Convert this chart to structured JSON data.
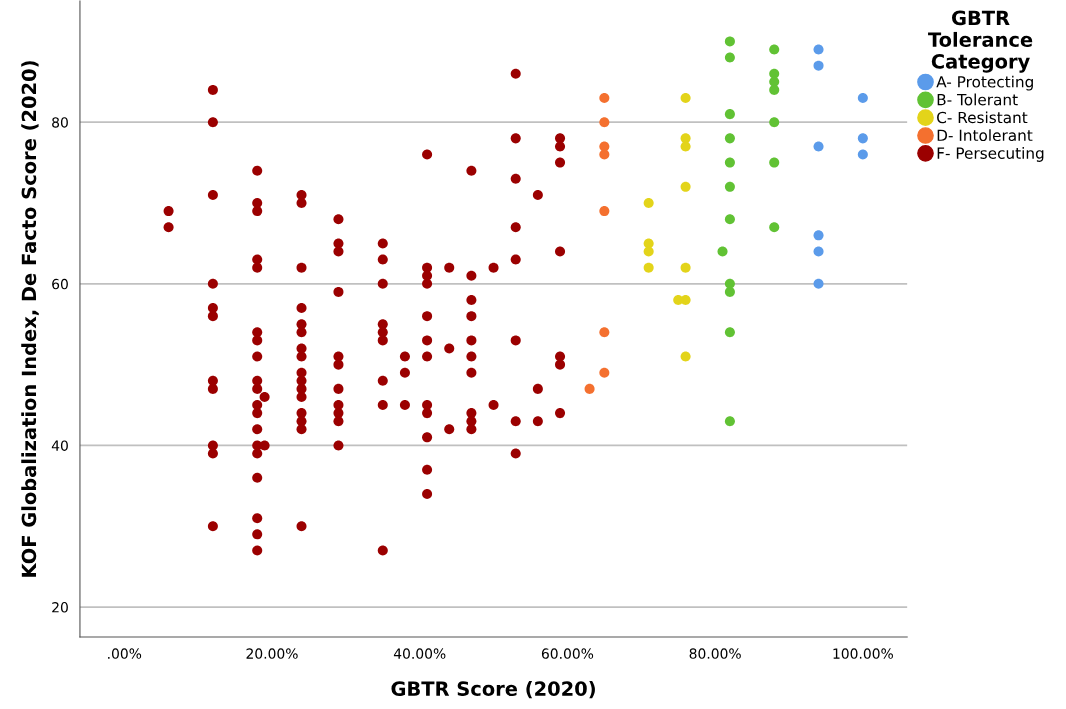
{
  "chart_data": {
    "type": "scatter",
    "xlabel": "GBTR Score (2020)",
    "ylabel": "KOF Globalization Index, De Facto Score (2020)",
    "legend_title": "GBTR\nTolerance\nCategory",
    "xlim": [
      -6,
      106
    ],
    "ylim": [
      16.3,
      95
    ],
    "xticks": [
      {
        "value": 0,
        "label": ".00%"
      },
      {
        "value": 20,
        "label": "20.00%"
      },
      {
        "value": 40,
        "label": "40.00%"
      },
      {
        "value": 60,
        "label": "60.00%"
      },
      {
        "value": 80,
        "label": "80.00%"
      },
      {
        "value": 100,
        "label": "100.00%"
      }
    ],
    "yticks": [
      20,
      40,
      60,
      80
    ],
    "grid": "y",
    "legend": "top right",
    "marker": "circle",
    "series": [
      {
        "name": "A- Protecting",
        "color": "#5b9bea",
        "x": [
          94,
          94,
          94,
          94,
          94,
          94,
          100,
          100,
          100
        ],
        "values": [
          89,
          87,
          77,
          66,
          64,
          60,
          83,
          78,
          76
        ]
      },
      {
        "name": "B- Tolerant",
        "color": "#61c234",
        "x": [
          82,
          82,
          82,
          82,
          82,
          82,
          82,
          82,
          82,
          82,
          82,
          81,
          88,
          88,
          88,
          88,
          88,
          88,
          88
        ],
        "values": [
          90,
          88,
          81,
          78,
          75,
          72,
          68,
          60,
          59,
          54,
          43,
          64,
          89,
          86,
          85,
          84,
          80,
          75,
          67
        ]
      },
      {
        "name": "C- Resistant",
        "color": "#e3d41a",
        "x": [
          71,
          71,
          71,
          71,
          76,
          76,
          76,
          76,
          76,
          76,
          76,
          75
        ],
        "values": [
          70,
          65,
          64,
          62,
          83,
          78,
          77,
          72,
          62,
          58,
          51,
          58
        ]
      },
      {
        "name": "D- Intolerant",
        "color": "#f4702f",
        "x": [
          65,
          65,
          65,
          65,
          65,
          65,
          65,
          63
        ],
        "values": [
          83,
          80,
          77,
          76,
          69,
          54,
          49,
          47
        ]
      },
      {
        "name": "F- Persecuting",
        "color": "#9b0000",
        "x": [
          6,
          6,
          12,
          12,
          12,
          12,
          12,
          12,
          12,
          12,
          12,
          12,
          12,
          18,
          18,
          18,
          18,
          18,
          18,
          18,
          18,
          18,
          18,
          18,
          18,
          18,
          18,
          18,
          18,
          18,
          18,
          18,
          19,
          19,
          24,
          24,
          24,
          24,
          24,
          24,
          24,
          24,
          24,
          24,
          24,
          24,
          24,
          24,
          24,
          24,
          29,
          29,
          29,
          29,
          29,
          29,
          29,
          29,
          29,
          29,
          29,
          35,
          35,
          35,
          35,
          35,
          35,
          35,
          35,
          35,
          38,
          38,
          38,
          41,
          41,
          41,
          41,
          41,
          41,
          41,
          41,
          41,
          41,
          41,
          41,
          44,
          44,
          44,
          47,
          47,
          47,
          47,
          47,
          47,
          47,
          47,
          47,
          47,
          50,
          50,
          53,
          53,
          53,
          53,
          53,
          53,
          53,
          53,
          56,
          56,
          56,
          59,
          59,
          59,
          59,
          59,
          59,
          59
        ],
        "values": [
          69,
          67,
          84,
          80,
          71,
          60,
          57,
          56,
          48,
          47,
          40,
          39,
          30,
          74,
          70,
          69,
          63,
          62,
          54,
          53,
          51,
          48,
          47,
          45,
          44,
          42,
          40,
          39,
          36,
          31,
          29,
          27,
          46,
          40,
          71,
          70,
          62,
          57,
          55,
          54,
          52,
          51,
          49,
          48,
          47,
          46,
          44,
          43,
          42,
          30,
          68,
          65,
          64,
          59,
          51,
          50,
          47,
          45,
          44,
          43,
          40,
          65,
          63,
          60,
          55,
          54,
          53,
          48,
          45,
          27,
          51,
          49,
          45,
          76,
          62,
          61,
          60,
          56,
          53,
          51,
          45,
          44,
          41,
          37,
          34,
          62,
          52,
          42,
          74,
          61,
          58,
          56,
          53,
          51,
          49,
          44,
          43,
          42,
          62,
          45,
          86,
          78,
          73,
          67,
          63,
          53,
          43,
          39,
          71,
          47,
          43,
          78,
          77,
          75,
          64,
          51,
          50,
          44
        ]
      }
    ]
  }
}
